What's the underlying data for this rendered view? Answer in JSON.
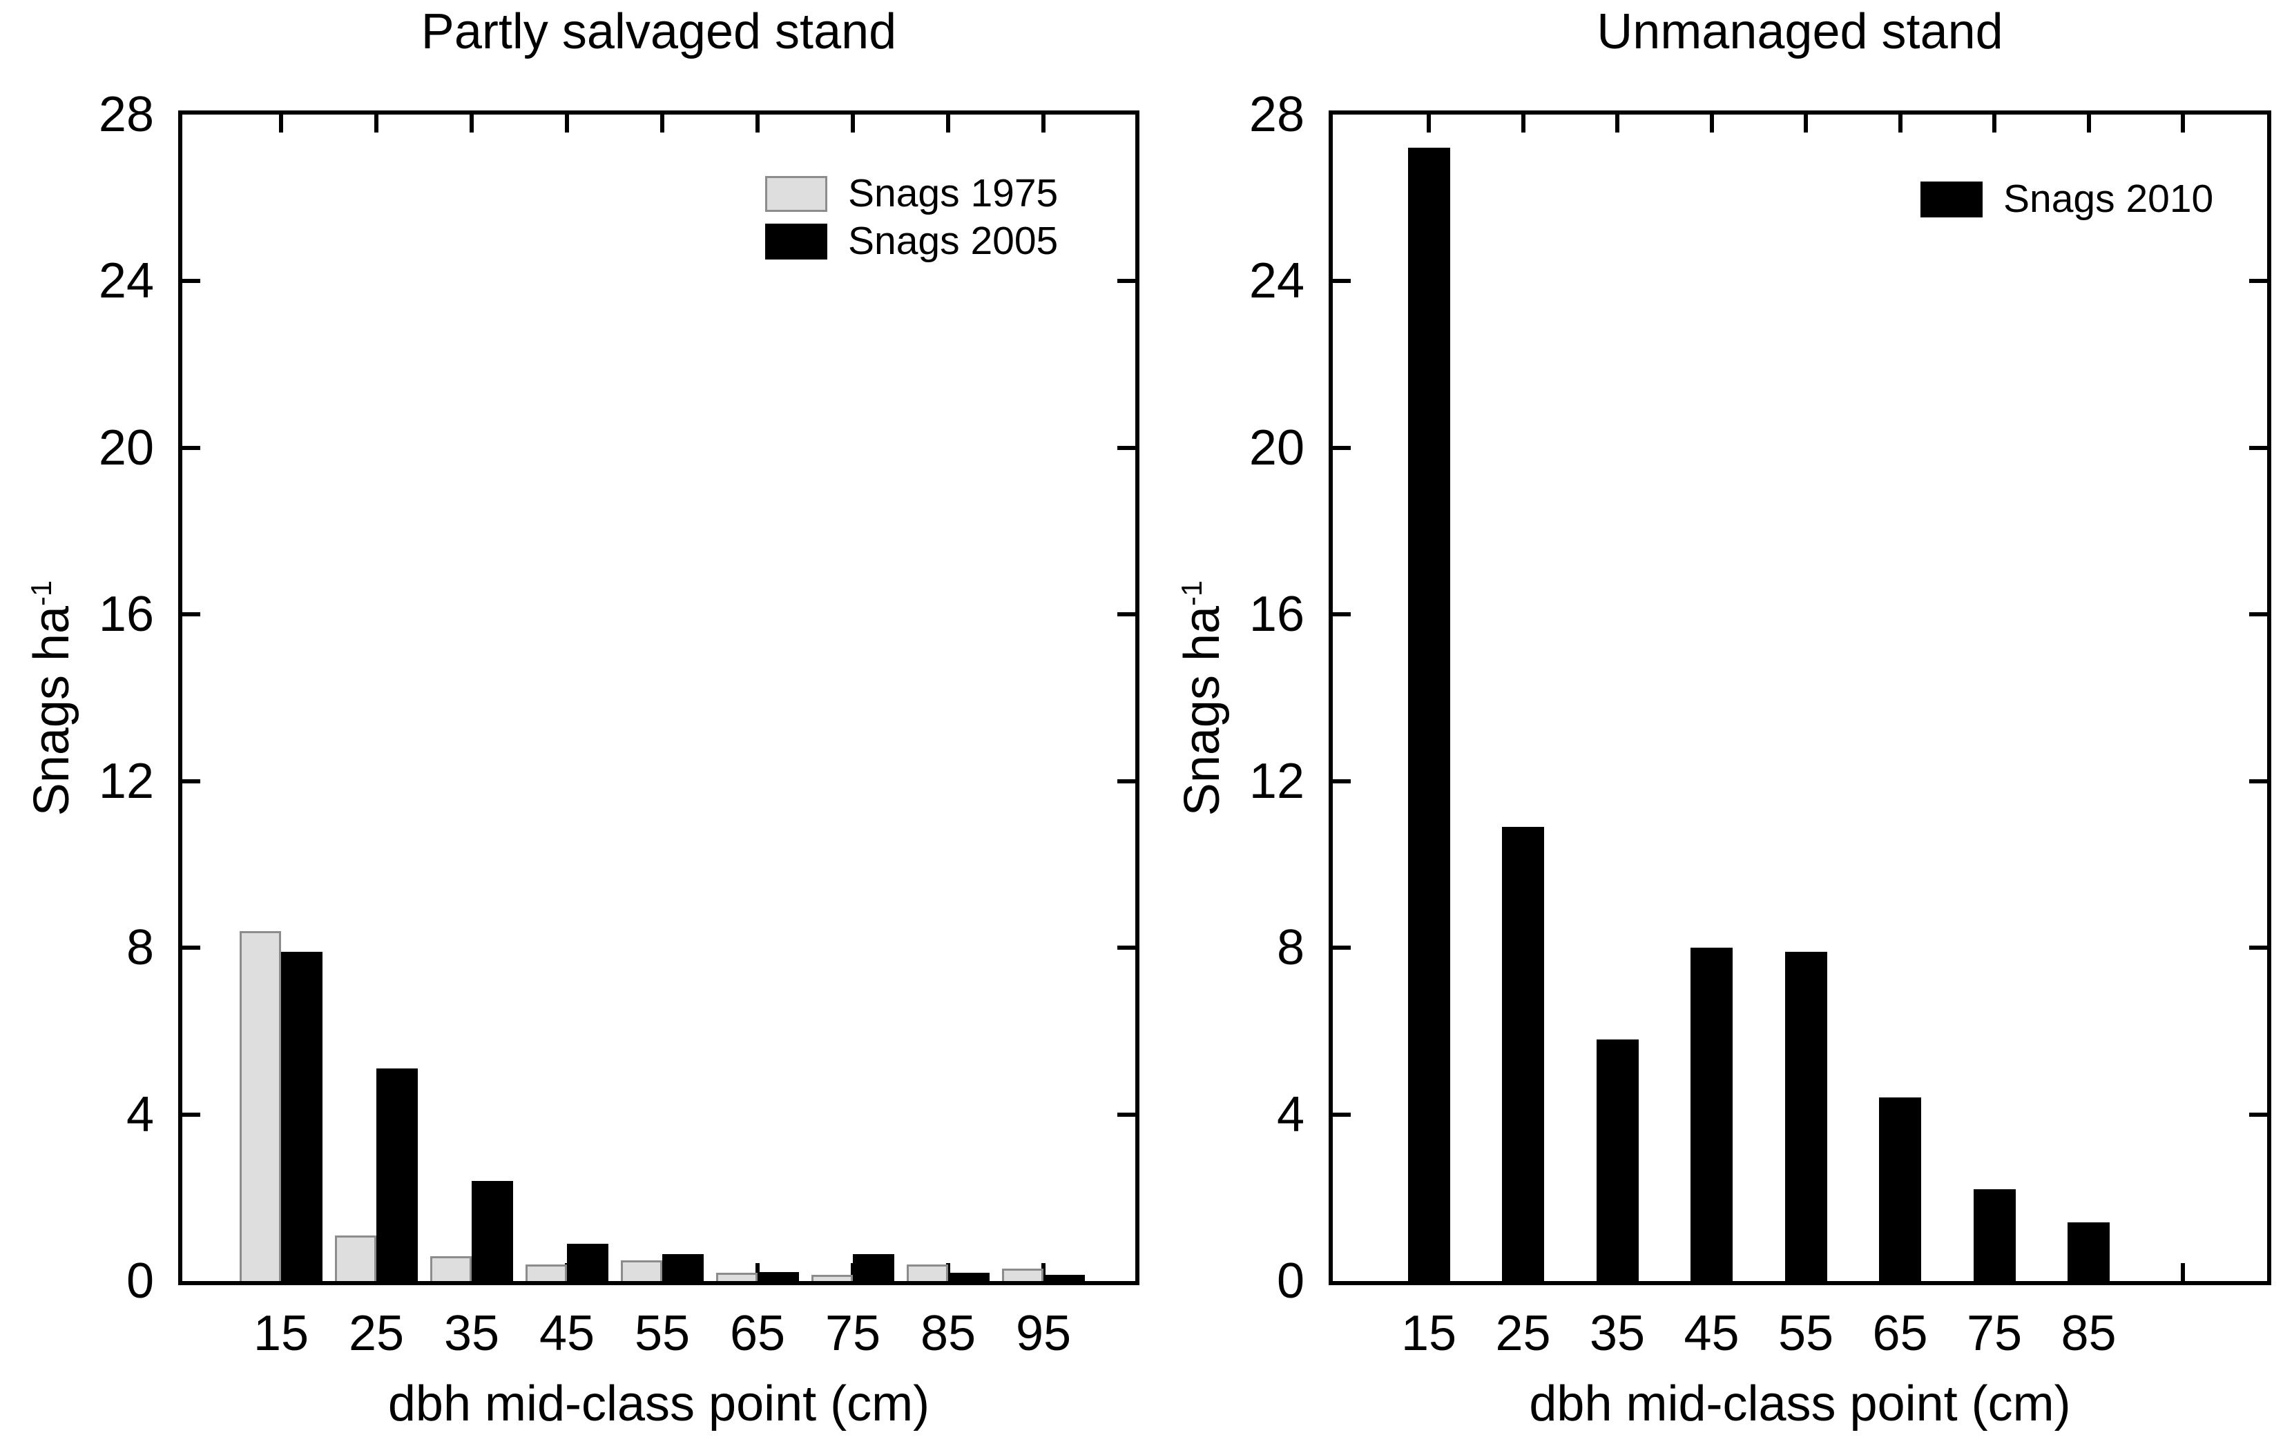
{
  "colors": {
    "background": "#ffffff",
    "text": "#000000",
    "axis": "#000000",
    "snags_1975_fill": "#dedede",
    "snags_1975_border": "#8c8c8c",
    "snags_black_fill": "#000000"
  },
  "chart_data": [
    {
      "type": "bar",
      "title": "Partly salvaged stand",
      "xlabel": "dbh mid-class point (cm)",
      "ylabel": "Snags ha⁻¹",
      "ylabel_base": "Snags ha",
      "ylabel_exp": "-1",
      "ylim": [
        0,
        28
      ],
      "yticks": [
        0,
        4,
        8,
        12,
        16,
        20,
        24,
        28
      ],
      "categories": [
        "15",
        "25",
        "35",
        "45",
        "55",
        "65",
        "75",
        "85",
        "95"
      ],
      "x_slots": 9,
      "grid": false,
      "legend_position": "upper-right",
      "series": [
        {
          "name": "Snags 1975",
          "fill": "#dedede",
          "border": "#8c8c8c",
          "values": [
            8.4,
            1.1,
            0.6,
            0.4,
            0.5,
            0.2,
            0.15,
            0.4,
            0.3
          ]
        },
        {
          "name": "Snags 2005",
          "fill": "#000000",
          "border": "#000000",
          "values": [
            7.9,
            5.1,
            2.4,
            0.9,
            0.65,
            0.22,
            0.65,
            0.2,
            0.15
          ]
        }
      ]
    },
    {
      "type": "bar",
      "title": "Unmanaged stand",
      "xlabel": "dbh mid-class point (cm)",
      "ylabel": "Snags ha⁻¹",
      "ylabel_base": "Snags ha",
      "ylabel_exp": "-1",
      "ylim": [
        0,
        28
      ],
      "yticks": [
        0,
        4,
        8,
        12,
        16,
        20,
        24,
        28
      ],
      "categories": [
        "15",
        "25",
        "35",
        "45",
        "55",
        "65",
        "75",
        "85"
      ],
      "x_slots": 9,
      "grid": false,
      "legend_position": "upper-right",
      "series": [
        {
          "name": "Snags 2010",
          "fill": "#000000",
          "border": "#000000",
          "values": [
            27.2,
            10.9,
            5.8,
            8.0,
            7.9,
            4.4,
            2.2,
            1.4
          ]
        }
      ]
    }
  ]
}
